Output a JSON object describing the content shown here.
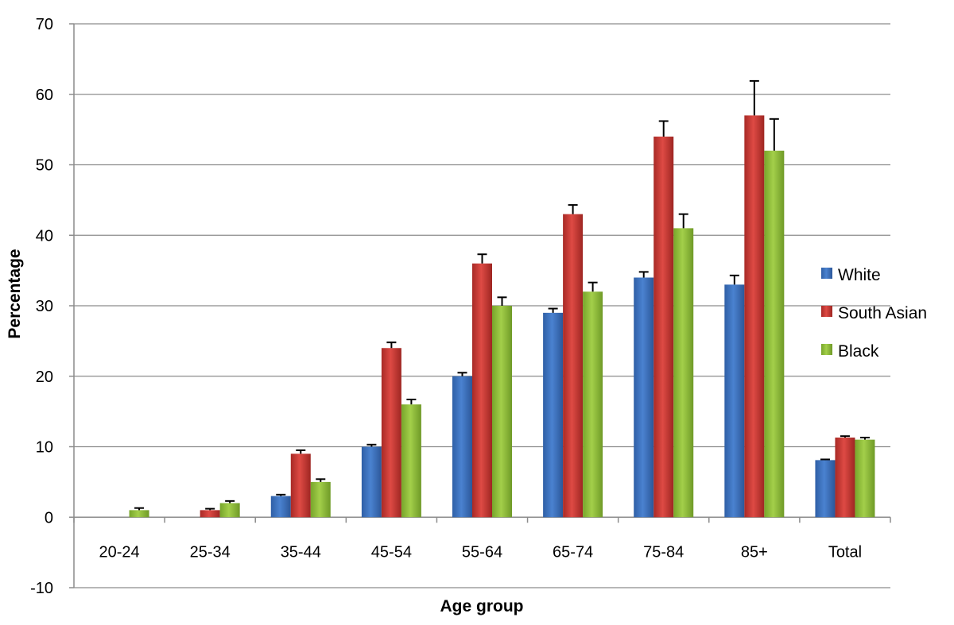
{
  "chart_data": {
    "type": "bar",
    "xlabel": "Age group",
    "ylabel": "Percentage",
    "ylim": [
      -10,
      70
    ],
    "yticks": [
      -10,
      0,
      10,
      20,
      30,
      40,
      50,
      60,
      70
    ],
    "grid": true,
    "legend_position": "right",
    "categories": [
      "20-24",
      "25-34",
      "35-44",
      "45-54",
      "55-64",
      "65-74",
      "75-84",
      "85+",
      "Total"
    ],
    "series": [
      {
        "name": "White",
        "color": "#3d73c4",
        "values": [
          0,
          0,
          3,
          10,
          20,
          29,
          34,
          33,
          8.1
        ],
        "error_upper": [
          0,
          0,
          0.2,
          0.3,
          0.5,
          0.6,
          0.8,
          1.3,
          0.1
        ]
      },
      {
        "name": "South Asian",
        "color": "#cc3a35",
        "values": [
          0,
          1,
          9,
          24,
          36,
          43,
          54,
          57,
          11.3
        ],
        "error_upper": [
          0,
          0.2,
          0.5,
          0.8,
          1.3,
          1.3,
          2.2,
          4.9,
          0.2
        ]
      },
      {
        "name": "Black",
        "color": "#90bf3a",
        "values": [
          1,
          2,
          5,
          16,
          30,
          32,
          41,
          52,
          11
        ],
        "error_upper": [
          0.3,
          0.3,
          0.4,
          0.7,
          1.2,
          1.3,
          2,
          4.5,
          0.3
        ]
      }
    ]
  }
}
